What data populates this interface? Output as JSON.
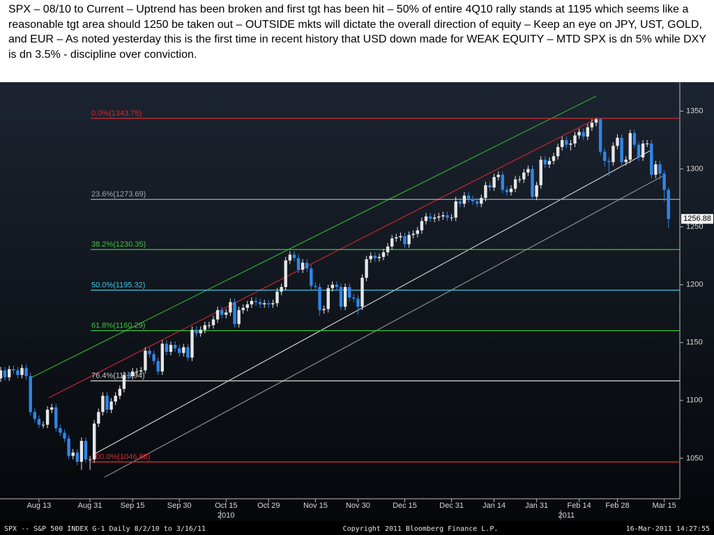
{
  "chart_data": {
    "type": "candlestick",
    "title": "SPX – 08/10 to Current – Uptrend has been broken and first tgt has been hit – 50% of entire 4Q10 rally stands at 1195 which seems like a reasonable tgt area should 1250 be taken out – OUTSIDE mkts will dictate the overall direction of equity – Keep an eye on JPY, UST, GOLD, and EUR – As noted yesterday this is the first time in recent history that USD down made for WEAK EQUITY – MTD SPX is dn 5% while DXY is dn 3.5% - discipline over conviction.",
    "up_color": "#e6e6e6",
    "down_color": "#2f86e6",
    "ylim": [
      1015,
      1375
    ],
    "yticks": [
      1050,
      1100,
      1150,
      1200,
      1250,
      1300,
      1350
    ],
    "xticks": [
      {
        "value": 9,
        "label": "Aug 13"
      },
      {
        "value": 21,
        "label": "Aug 31"
      },
      {
        "value": 31,
        "label": "Sep 15"
      },
      {
        "value": 42,
        "label": "Sep 30"
      },
      {
        "value": 53,
        "label": "Oct 15"
      },
      {
        "value": 63,
        "label": "Oct 29"
      },
      {
        "value": 74,
        "label": "Nov 15"
      },
      {
        "value": 84,
        "label": "Nov 30"
      },
      {
        "value": 95,
        "label": "Dec 15"
      },
      {
        "value": 106,
        "label": "Dec 31"
      },
      {
        "value": 116,
        "label": "Jan 14"
      },
      {
        "value": 126,
        "label": "Jan 31"
      },
      {
        "value": 136,
        "label": "Feb 14"
      },
      {
        "value": 145,
        "label": "Feb 28"
      },
      {
        "value": 156,
        "label": "Mar 15"
      }
    ],
    "years": [
      {
        "value": 53,
        "label": "2010"
      },
      {
        "value": 133,
        "label": "2011"
      }
    ],
    "levels": [
      {
        "label": "0.0%(1343.75)",
        "value": 1343.75,
        "color": "#d42a33"
      },
      {
        "label": "23.6%(1273.69)",
        "value": 1273.69,
        "color": "#a8a8a8"
      },
      {
        "label": "38.2%(1230.35)",
        "value": 1230.35,
        "color": "#3ec43e"
      },
      {
        "label": "50.0%(1195.32)",
        "value": 1195.32,
        "color": "#3cc8e0"
      },
      {
        "label": "61.8%(1160.29)",
        "value": 1160.29,
        "color": "#3ec43e"
      },
      {
        "label": "76.4%(1116.94)",
        "value": 1116.94,
        "color": "#c8c8c8"
      },
      {
        "label": "100.0%(1046.88)",
        "value": 1046.88,
        "color": "#d42a33"
      }
    ],
    "open": [
      1119,
      1126,
      1120,
      1127,
      1126,
      1122,
      1128,
      1121,
      1090,
      1084,
      1079,
      1079,
      1092,
      1094,
      1076,
      1072,
      1067,
      1052,
      1055,
      1047,
      1065,
      1049,
      1049,
      1080,
      1090,
      1104,
      1092,
      1099,
      1104,
      1110,
      1122,
      1121,
      1125,
      1125,
      1126,
      1143,
      1140,
      1134,
      1125,
      1149,
      1142,
      1148,
      1145,
      1141,
      1146,
      1137,
      1161,
      1158,
      1161,
      1165,
      1165,
      1170,
      1178,
      1174,
      1176,
      1185,
      1166,
      1178,
      1180,
      1183,
      1186,
      1185,
      1183,
      1184,
      1183,
      1184,
      1194,
      1198,
      1221,
      1226,
      1223,
      1213,
      1219,
      1214,
      1199,
      1198,
      1178,
      1179,
      1197,
      1200,
      1198,
      1181,
      1198,
      1189,
      1188,
      1181,
      1206,
      1222,
      1225,
      1223,
      1224,
      1228,
      1233,
      1240,
      1241,
      1242,
      1235,
      1243,
      1244,
      1247,
      1255,
      1259,
      1257,
      1258,
      1259,
      1260,
      1258,
      1258,
      1272,
      1270,
      1277,
      1274,
      1272,
      1270,
      1275,
      1286,
      1284,
      1293,
      1295,
      1282,
      1280,
      1283,
      1291,
      1291,
      1297,
      1300,
      1276,
      1286,
      1308,
      1304,
      1307,
      1311,
      1319,
      1325,
      1321,
      1322,
      1329,
      1332,
      1328,
      1336,
      1340,
      1343,
      1315,
      1307,
      1306,
      1320,
      1327,
      1306,
      1308,
      1331,
      1321,
      1310,
      1322,
      1322,
      1295,
      1304,
      1296,
      1282
    ],
    "high": [
      1129,
      1129,
      1130,
      1130,
      1129,
      1131,
      1131,
      1124,
      1093,
      1087,
      1082,
      1095,
      1097,
      1097,
      1079,
      1075,
      1070,
      1058,
      1058,
      1068,
      1068,
      1052,
      1083,
      1093,
      1107,
      1107,
      1102,
      1107,
      1113,
      1125,
      1125,
      1128,
      1128,
      1129,
      1146,
      1146,
      1143,
      1137,
      1152,
      1152,
      1151,
      1151,
      1148,
      1149,
      1149,
      1164,
      1164,
      1164,
      1168,
      1168,
      1173,
      1181,
      1181,
      1179,
      1188,
      1188,
      1181,
      1183,
      1186,
      1189,
      1189,
      1188,
      1187,
      1187,
      1187,
      1197,
      1201,
      1224,
      1229,
      1229,
      1226,
      1222,
      1222,
      1217,
      1202,
      1201,
      1182,
      1200,
      1203,
      1203,
      1201,
      1201,
      1201,
      1192,
      1191,
      1209,
      1225,
      1228,
      1228,
      1227,
      1231,
      1236,
      1243,
      1244,
      1245,
      1245,
      1246,
      1247,
      1250,
      1258,
      1262,
      1262,
      1261,
      1262,
      1263,
      1263,
      1261,
      1276,
      1275,
      1280,
      1280,
      1277,
      1275,
      1278,
      1289,
      1289,
      1296,
      1298,
      1298,
      1285,
      1286,
      1294,
      1294,
      1300,
      1303,
      1303,
      1289,
      1311,
      1311,
      1310,
      1314,
      1322,
      1328,
      1328,
      1325,
      1332,
      1335,
      1335,
      1339,
      1343,
      1344,
      1344,
      1318,
      1310,
      1323,
      1330,
      1330,
      1311,
      1334,
      1334,
      1324,
      1325,
      1325,
      1325,
      1307,
      1307,
      1299,
      1284
    ],
    "low": [
      1116,
      1117,
      1117,
      1123,
      1119,
      1119,
      1118,
      1087,
      1081,
      1076,
      1076,
      1076,
      1089,
      1073,
      1069,
      1064,
      1049,
      1049,
      1044,
      1040,
      1046,
      1040,
      1046,
      1077,
      1087,
      1089,
      1089,
      1096,
      1101,
      1107,
      1118,
      1118,
      1122,
      1122,
      1123,
      1137,
      1131,
      1122,
      1122,
      1139,
      1139,
      1142,
      1138,
      1138,
      1134,
      1134,
      1155,
      1155,
      1158,
      1162,
      1162,
      1167,
      1171,
      1171,
      1173,
      1163,
      1163,
      1175,
      1177,
      1180,
      1182,
      1180,
      1180,
      1180,
      1180,
      1181,
      1191,
      1195,
      1218,
      1220,
      1210,
      1210,
      1211,
      1196,
      1195,
      1173,
      1175,
      1176,
      1194,
      1195,
      1178,
      1178,
      1186,
      1185,
      1174,
      1178,
      1203,
      1219,
      1220,
      1220,
      1221,
      1225,
      1230,
      1237,
      1238,
      1232,
      1232,
      1240,
      1241,
      1244,
      1252,
      1254,
      1254,
      1255,
      1256,
      1255,
      1255,
      1255,
      1267,
      1267,
      1271,
      1269,
      1267,
      1267,
      1272,
      1281,
      1281,
      1290,
      1279,
      1277,
      1277,
      1280,
      1288,
      1288,
      1294,
      1273,
      1273,
      1283,
      1301,
      1301,
      1304,
      1308,
      1316,
      1318,
      1316,
      1319,
      1326,
      1325,
      1325,
      1333,
      1337,
      1312,
      1302,
      1294,
      1303,
      1317,
      1303,
      1303,
      1305,
      1318,
      1307,
      1307,
      1319,
      1292,
      1292,
      1291,
      1272,
      1249
    ],
    "close": [
      1126,
      1120,
      1127,
      1126,
      1122,
      1128,
      1121,
      1090,
      1084,
      1079,
      1079,
      1092,
      1094,
      1076,
      1072,
      1067,
      1052,
      1055,
      1047,
      1065,
      1049,
      1049,
      1080,
      1090,
      1104,
      1092,
      1099,
      1104,
      1110,
      1122,
      1121,
      1125,
      1125,
      1126,
      1143,
      1140,
      1134,
      1125,
      1149,
      1142,
      1148,
      1145,
      1141,
      1146,
      1137,
      1161,
      1158,
      1161,
      1165,
      1165,
      1170,
      1178,
      1174,
      1176,
      1185,
      1166,
      1178,
      1180,
      1183,
      1186,
      1185,
      1183,
      1184,
      1183,
      1184,
      1194,
      1198,
      1221,
      1226,
      1223,
      1213,
      1219,
      1214,
      1199,
      1198,
      1178,
      1179,
      1197,
      1200,
      1198,
      1181,
      1198,
      1189,
      1188,
      1181,
      1206,
      1222,
      1225,
      1223,
      1224,
      1228,
      1233,
      1240,
      1241,
      1242,
      1235,
      1243,
      1244,
      1247,
      1255,
      1259,
      1257,
      1258,
      1259,
      1260,
      1258,
      1258,
      1272,
      1270,
      1277,
      1274,
      1272,
      1270,
      1275,
      1286,
      1284,
      1293,
      1295,
      1282,
      1280,
      1283,
      1291,
      1291,
      1297,
      1300,
      1276,
      1286,
      1308,
      1304,
      1307,
      1311,
      1319,
      1325,
      1321,
      1322,
      1329,
      1332,
      1328,
      1336,
      1340,
      1343,
      1315,
      1307,
      1306,
      1320,
      1327,
      1306,
      1308,
      1331,
      1321,
      1310,
      1322,
      1322,
      1295,
      1304,
      1296,
      1282,
      1256.88
    ],
    "footer": {
      "left": "SPX -- S&P 500 INDEX    G-1   Daily  8/2/10 to 3/16/11",
      "center": "Copyright 2011 Bloomberg Finance L.P.",
      "right": "16-Mar-2011 14:27:55"
    }
  }
}
